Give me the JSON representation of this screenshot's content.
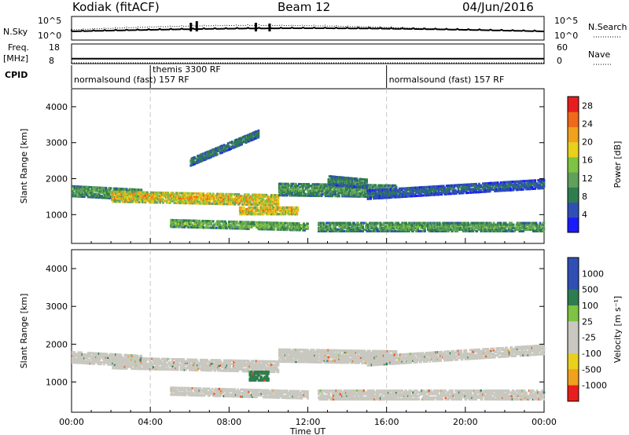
{
  "header": {
    "station": "Kodiak (fitACF)",
    "beam": "Beam 12",
    "date": "04/Jun/2016"
  },
  "strip_labels": {
    "nsky": "N.Sky",
    "freq_1": "Freq.",
    "freq_2": "[MHz]",
    "cpid": "CPID",
    "nsearch": "N.Search",
    "nave": "Nave"
  },
  "cpid_modes": [
    {
      "label": "normalsound (fast) 157 RF",
      "start_hour": 0
    },
    {
      "label": "themis 3300 RF",
      "start_hour": 4
    },
    {
      "label": "normalsound (fast) 157 RF",
      "start_hour": 16
    }
  ],
  "colors": {
    "power_scale": [
      "#1a1aff",
      "#2f4fb5",
      "#2e7d4f",
      "#5fa05a",
      "#7ec341",
      "#e8d01c",
      "#f0a11d",
      "#ee6a1a",
      "#e81e1e"
    ],
    "velocity_scale": [
      "#e81e1e",
      "#f05b1a",
      "#f0a11d",
      "#e8d01c",
      "#c8c8c0",
      "#c8c8c0",
      "#7ec341",
      "#5fa05a",
      "#2e7d4f",
      "#2f4fb5"
    ]
  },
  "chart_data": [
    {
      "type": "line",
      "title": "N.Sky / N.Search",
      "ylabel": "N.Sky",
      "ylabel_right": "N.Search",
      "yticks_left": [
        "10^5",
        "10^0"
      ],
      "yticks_right": [
        "10^5",
        "10^0"
      ]
    },
    {
      "type": "line",
      "ylabel": "Freq. [MHz]",
      "ylabel_right": "Nave",
      "yticks_left": [
        18,
        8
      ],
      "yticks_right": [
        60,
        0
      ],
      "freq_mhz": 10.5
    },
    {
      "type": "heatmap",
      "quantity": "power",
      "xlabel": "",
      "ylabel": "Slant Range [km]",
      "xlim_hours": [
        0,
        24
      ],
      "ylim": [
        200,
        4500
      ],
      "yticks": [
        1000,
        2000,
        3000,
        4000
      ],
      "colorbar": {
        "label": "Power [dB]",
        "ticks": [
          4,
          8,
          12,
          16,
          20,
          24,
          28
        ],
        "range": [
          0,
          30
        ]
      },
      "bands": [
        {
          "t0": 0.0,
          "t1": 3.5,
          "r_center": [
            1700,
            1600
          ],
          "width": 300,
          "level": 16
        },
        {
          "t0": 2.0,
          "t1": 10.5,
          "r_center": [
            1550,
            1450
          ],
          "width": 300,
          "level": 27
        },
        {
          "t0": 5.0,
          "t1": 12.0,
          "r_center": [
            800,
            700
          ],
          "width": 200,
          "level": 18
        },
        {
          "t0": 8.5,
          "t1": 11.5,
          "r_center": [
            1150,
            1150
          ],
          "width": 200,
          "level": 26
        },
        {
          "t0": 10.5,
          "t1": 16.5,
          "r_center": [
            1750,
            1700
          ],
          "width": 350,
          "level": 15
        },
        {
          "t0": 13.0,
          "t1": 15.0,
          "r_center": [
            2000,
            1900
          ],
          "width": 250,
          "level": 12
        },
        {
          "t0": 15.0,
          "t1": 24.0,
          "r_center": [
            1600,
            1900
          ],
          "width": 250,
          "level": 10
        },
        {
          "t0": 12.5,
          "t1": 24.0,
          "r_center": [
            700,
            700
          ],
          "width": 250,
          "level": 16
        },
        {
          "t0": 6.0,
          "t1": 9.5,
          "r_center": [
            2500,
            3300
          ],
          "width": 200,
          "level": 12
        }
      ]
    },
    {
      "type": "heatmap",
      "quantity": "velocity",
      "xlabel": "Time UT",
      "ylabel": "Slant Range [km]",
      "xlim_hours": [
        0,
        24
      ],
      "ylim": [
        200,
        4500
      ],
      "xticks": [
        "00:00",
        "04:00",
        "08:00",
        "12:00",
        "16:00",
        "20:00",
        "00:00"
      ],
      "yticks": [
        1000,
        2000,
        3000,
        4000
      ],
      "colorbar": {
        "label": "Velocity [m s⁻¹]",
        "ticks": [
          1000,
          500,
          100,
          25,
          -25,
          -100,
          -500,
          -1000
        ]
      },
      "bands": [
        {
          "t0": 0.0,
          "t1": 3.5,
          "r_center": [
            1700,
            1600
          ],
          "width": 300,
          "velocity": 0
        },
        {
          "t0": 2.0,
          "t1": 10.5,
          "r_center": [
            1550,
            1450
          ],
          "width": 300,
          "velocity": 0
        },
        {
          "t0": 5.0,
          "t1": 12.0,
          "r_center": [
            800,
            700
          ],
          "width": 200,
          "velocity": 0
        },
        {
          "t0": 9.0,
          "t1": 10.0,
          "r_center": [
            1200,
            1200
          ],
          "width": 250,
          "velocity": 150
        },
        {
          "t0": 10.5,
          "t1": 16.5,
          "r_center": [
            1750,
            1700
          ],
          "width": 350,
          "velocity": 0
        },
        {
          "t0": 15.0,
          "t1": 24.0,
          "r_center": [
            1600,
            1900
          ],
          "width": 250,
          "velocity": 0
        },
        {
          "t0": 12.5,
          "t1": 24.0,
          "r_center": [
            700,
            700
          ],
          "width": 250,
          "velocity": 0
        }
      ]
    }
  ]
}
